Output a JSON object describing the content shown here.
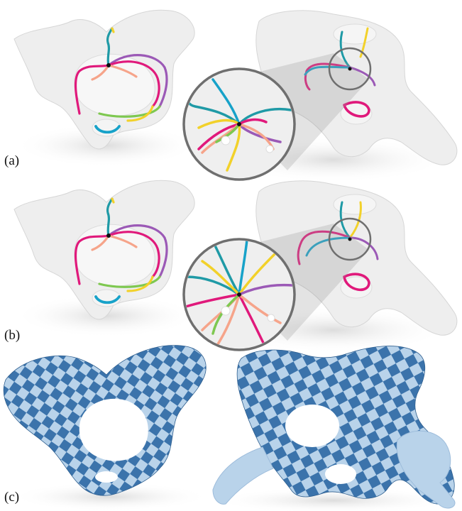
{
  "panels": [
    {
      "label": "(a)",
      "variant": "curves-scattered"
    },
    {
      "label": "(b)",
      "variant": "curves-converging"
    },
    {
      "label": "(c)",
      "variant": "checkerboard-texture"
    }
  ],
  "colors": {
    "bone": "#eeeeee",
    "bone_edge": "#d3d3d3",
    "shadow": "#e7e7e7",
    "lens_ring": "#6f6f6f",
    "checker_dark": "#3b73ab",
    "checker_light": "#b9d3ea",
    "curve_palette": [
      "#1f9aa6",
      "#e0197b",
      "#7ec850",
      "#9b59b6",
      "#f2d12a",
      "#f6a48a",
      "#17a2c9"
    ]
  }
}
